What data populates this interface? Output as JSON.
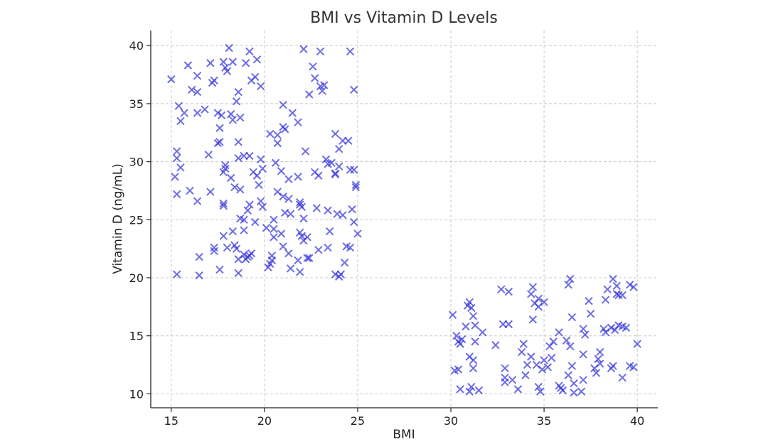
{
  "chart_data": {
    "type": "scatter",
    "title": "BMI vs Vitamin D Levels",
    "xlabel": "BMI",
    "ylabel": "Vitamin D (ng/mL)",
    "xlim": [
      13.9,
      41.1
    ],
    "ylim": [
      8.8,
      41.3
    ],
    "x_ticks": [
      15,
      20,
      25,
      30,
      35,
      40
    ],
    "y_ticks": [
      10,
      15,
      20,
      25,
      30,
      35,
      40
    ],
    "grid": true,
    "marker": "x",
    "color": "#3333dd",
    "series": [
      {
        "points": [
          [
            15.0,
            37.1
          ],
          [
            15.4,
            34.8
          ],
          [
            15.5,
            33.5
          ],
          [
            15.7,
            34.2
          ],
          [
            15.9,
            38.3
          ],
          [
            16.1,
            36.2
          ],
          [
            16.4,
            37.4
          ],
          [
            16.4,
            36.0
          ],
          [
            16.4,
            34.2
          ],
          [
            16.8,
            34.5
          ],
          [
            17.2,
            36.8
          ],
          [
            17.1,
            38.5
          ],
          [
            17.3,
            37.0
          ],
          [
            17.5,
            34.2
          ],
          [
            17.6,
            32.9
          ],
          [
            17.8,
            38.6
          ],
          [
            17.9,
            38.1
          ],
          [
            18.0,
            37.8
          ],
          [
            18.1,
            39.8
          ],
          [
            18.3,
            38.6
          ],
          [
            18.3,
            33.6
          ],
          [
            18.5,
            35.2
          ],
          [
            18.6,
            36.0
          ],
          [
            18.7,
            33.8
          ],
          [
            19.0,
            38.5
          ],
          [
            19.2,
            39.5
          ],
          [
            19.3,
            37.0
          ],
          [
            19.5,
            37.3
          ],
          [
            19.6,
            38.8
          ],
          [
            19.8,
            36.5
          ],
          [
            17.7,
            34.0
          ],
          [
            18.2,
            34.1
          ],
          [
            15.3,
            30.3
          ],
          [
            15.3,
            30.9
          ],
          [
            15.2,
            28.7
          ],
          [
            15.5,
            29.5
          ],
          [
            15.3,
            27.2
          ],
          [
            16.0,
            27.5
          ],
          [
            16.4,
            26.6
          ],
          [
            17.0,
            30.6
          ],
          [
            17.1,
            27.4
          ],
          [
            17.5,
            31.6
          ],
          [
            17.6,
            31.7
          ],
          [
            17.8,
            29.1
          ],
          [
            17.9,
            29.7
          ],
          [
            17.9,
            29.4
          ],
          [
            18.2,
            28.6
          ],
          [
            18.6,
            31.7
          ],
          [
            18.6,
            30.3
          ],
          [
            18.9,
            30.5
          ],
          [
            19.2,
            30.5
          ],
          [
            19.4,
            29.1
          ],
          [
            19.6,
            28.8
          ],
          [
            19.8,
            30.2
          ],
          [
            19.9,
            29.4
          ],
          [
            19.7,
            28.0
          ],
          [
            18.7,
            27.6
          ],
          [
            18.4,
            27.8
          ],
          [
            17.8,
            26.4
          ],
          [
            17.8,
            26.2
          ],
          [
            19.2,
            26.3
          ],
          [
            19.8,
            26.6
          ],
          [
            19.9,
            26.1
          ],
          [
            16.5,
            21.8
          ],
          [
            17.3,
            22.6
          ],
          [
            17.3,
            22.3
          ],
          [
            17.6,
            20.7
          ],
          [
            17.8,
            23.6
          ],
          [
            18.0,
            22.6
          ],
          [
            18.3,
            24.0
          ],
          [
            18.4,
            22.8
          ],
          [
            18.5,
            22.5
          ],
          [
            18.6,
            20.4
          ],
          [
            18.7,
            25.1
          ],
          [
            18.9,
            25.0
          ],
          [
            18.9,
            24.1
          ],
          [
            18.9,
            22.0
          ],
          [
            19.0,
            21.6
          ],
          [
            19.1,
            21.8
          ],
          [
            19.2,
            21.9
          ],
          [
            19.3,
            22.1
          ],
          [
            19.1,
            25.8
          ],
          [
            19.5,
            24.8
          ],
          [
            20.1,
            24.3
          ],
          [
            20.2,
            20.9
          ],
          [
            20.3,
            21.2
          ],
          [
            20.4,
            21.5
          ],
          [
            20.4,
            21.9
          ],
          [
            20.5,
            23.5
          ],
          [
            20.5,
            24.2
          ],
          [
            15.3,
            20.3
          ],
          [
            16.5,
            20.2
          ],
          [
            18.6,
            21.6
          ],
          [
            20.3,
            32.4
          ],
          [
            20.7,
            32.3
          ],
          [
            20.7,
            31.6
          ],
          [
            21.0,
            33.0
          ],
          [
            21.1,
            32.8
          ],
          [
            21.0,
            34.9
          ],
          [
            21.5,
            34.2
          ],
          [
            21.8,
            33.4
          ],
          [
            20.6,
            29.9
          ],
          [
            20.9,
            29.2
          ],
          [
            21.3,
            28.5
          ],
          [
            21.8,
            28.7
          ],
          [
            20.7,
            27.4
          ],
          [
            21.0,
            27.0
          ],
          [
            21.3,
            26.8
          ],
          [
            21.9,
            26.5
          ],
          [
            21.9,
            26.3
          ],
          [
            22.0,
            26.1
          ],
          [
            20.5,
            25.0
          ],
          [
            21.1,
            25.6
          ],
          [
            21.4,
            25.5
          ],
          [
            22.1,
            25.1
          ],
          [
            20.9,
            23.8
          ],
          [
            21.9,
            23.9
          ],
          [
            22.0,
            23.6
          ],
          [
            22.3,
            23.5
          ],
          [
            22.1,
            23.2
          ],
          [
            21.0,
            22.7
          ],
          [
            21.3,
            22.1
          ],
          [
            21.8,
            21.5
          ],
          [
            21.9,
            20.5
          ],
          [
            22.3,
            21.7
          ],
          [
            21.4,
            20.8
          ],
          [
            22.1,
            39.7
          ],
          [
            22.4,
            35.8
          ],
          [
            22.6,
            38.2
          ],
          [
            22.7,
            37.2
          ],
          [
            23.0,
            36.5
          ],
          [
            23.0,
            39.5
          ],
          [
            23.1,
            36.1
          ],
          [
            23.2,
            36.6
          ],
          [
            22.2,
            30.9
          ],
          [
            22.7,
            29.1
          ],
          [
            22.9,
            28.8
          ],
          [
            23.3,
            30.2
          ],
          [
            23.4,
            29.8
          ],
          [
            23.6,
            29.9
          ],
          [
            23.8,
            29.0
          ],
          [
            23.8,
            28.9
          ],
          [
            24.0,
            31.1
          ],
          [
            24.0,
            29.6
          ],
          [
            24.2,
            31.8
          ],
          [
            24.5,
            31.8
          ],
          [
            24.6,
            29.3
          ],
          [
            24.8,
            29.3
          ],
          [
            22.8,
            26.0
          ],
          [
            23.4,
            25.8
          ],
          [
            23.9,
            25.5
          ],
          [
            24.2,
            25.4
          ],
          [
            24.7,
            25.9
          ],
          [
            24.8,
            24.8
          ],
          [
            24.9,
            27.8
          ],
          [
            24.9,
            28.0
          ],
          [
            25.0,
            23.8
          ],
          [
            22.4,
            21.7
          ],
          [
            22.9,
            22.4
          ],
          [
            23.4,
            22.6
          ],
          [
            23.5,
            24.0
          ],
          [
            23.8,
            20.3
          ],
          [
            24.0,
            20.1
          ],
          [
            24.1,
            20.3
          ],
          [
            24.3,
            21.3
          ],
          [
            24.4,
            22.7
          ],
          [
            24.6,
            22.6
          ],
          [
            24.8,
            36.2
          ],
          [
            24.6,
            39.5
          ],
          [
            23.8,
            32.4
          ],
          [
            30.1,
            16.8
          ],
          [
            30.3,
            15.0
          ],
          [
            30.4,
            14.5
          ],
          [
            30.5,
            14.3
          ],
          [
            30.6,
            14.7
          ],
          [
            30.2,
            12.0
          ],
          [
            30.4,
            12.1
          ],
          [
            30.5,
            10.4
          ],
          [
            30.8,
            15.8
          ],
          [
            30.9,
            17.6
          ],
          [
            31.0,
            17.9
          ],
          [
            31.1,
            17.4
          ],
          [
            31.2,
            16.7
          ],
          [
            31.3,
            15.9
          ],
          [
            31.0,
            13.2
          ],
          [
            31.2,
            12.9
          ],
          [
            31.2,
            12.2
          ],
          [
            31.3,
            14.5
          ],
          [
            31.1,
            10.6
          ],
          [
            31.0,
            10.2
          ],
          [
            31.5,
            10.3
          ],
          [
            31.7,
            15.3
          ],
          [
            32.4,
            14.2
          ],
          [
            32.7,
            19.0
          ],
          [
            33.1,
            18.8
          ],
          [
            32.8,
            16.0
          ],
          [
            33.1,
            16.0
          ],
          [
            32.9,
            12.2
          ],
          [
            32.9,
            11.4
          ],
          [
            32.9,
            11.0
          ],
          [
            33.3,
            11.2
          ],
          [
            33.6,
            10.4
          ],
          [
            33.8,
            13.6
          ],
          [
            33.9,
            14.3
          ],
          [
            34.0,
            11.6
          ],
          [
            34.1,
            12.5
          ],
          [
            34.4,
            19.2
          ],
          [
            34.3,
            18.6
          ],
          [
            34.5,
            17.8
          ],
          [
            34.4,
            16.4
          ],
          [
            34.7,
            17.5
          ],
          [
            34.7,
            18.2
          ],
          [
            35.0,
            17.9
          ],
          [
            34.3,
            13.2
          ],
          [
            34.6,
            12.5
          ],
          [
            34.9,
            12.1
          ],
          [
            35.0,
            12.9
          ],
          [
            35.3,
            14.1
          ],
          [
            35.4,
            13.1
          ],
          [
            35.5,
            14.5
          ],
          [
            35.8,
            15.3
          ],
          [
            35.8,
            10.7
          ],
          [
            35.9,
            10.5
          ],
          [
            36.0,
            10.3
          ],
          [
            34.7,
            10.6
          ],
          [
            34.8,
            10.2
          ],
          [
            35.2,
            12.3
          ],
          [
            36.3,
            19.4
          ],
          [
            36.4,
            19.9
          ],
          [
            36.5,
            16.6
          ],
          [
            36.2,
            14.6
          ],
          [
            36.4,
            14.1
          ],
          [
            36.5,
            12.4
          ],
          [
            36.3,
            11.6
          ],
          [
            36.6,
            10.9
          ],
          [
            36.6,
            10.1
          ],
          [
            37.0,
            10.2
          ],
          [
            37.1,
            11.2
          ],
          [
            37.1,
            13.4
          ],
          [
            37.2,
            15.1
          ],
          [
            37.1,
            15.6
          ],
          [
            37.4,
            18.0
          ],
          [
            37.5,
            16.9
          ],
          [
            37.7,
            12.2
          ],
          [
            37.8,
            11.8
          ],
          [
            37.9,
            13.0
          ],
          [
            38.0,
            13.6
          ],
          [
            38.0,
            12.6
          ],
          [
            38.2,
            15.6
          ],
          [
            38.3,
            15.3
          ],
          [
            38.3,
            18.1
          ],
          [
            38.4,
            19.0
          ],
          [
            38.6,
            15.7
          ],
          [
            38.7,
            19.9
          ],
          [
            38.7,
            12.4
          ],
          [
            38.6,
            12.2
          ],
          [
            38.9,
            19.3
          ],
          [
            39.0,
            18.5
          ],
          [
            39.0,
            15.9
          ],
          [
            39.2,
            15.8
          ],
          [
            39.2,
            18.5
          ],
          [
            39.4,
            15.7
          ],
          [
            39.6,
            19.4
          ],
          [
            39.8,
            19.2
          ],
          [
            39.6,
            12.4
          ],
          [
            39.8,
            12.3
          ],
          [
            39.2,
            11.4
          ],
          [
            40.0,
            14.3
          ],
          [
            38.8,
            15.5
          ],
          [
            38.9,
            18.6
          ]
        ]
      }
    ]
  }
}
